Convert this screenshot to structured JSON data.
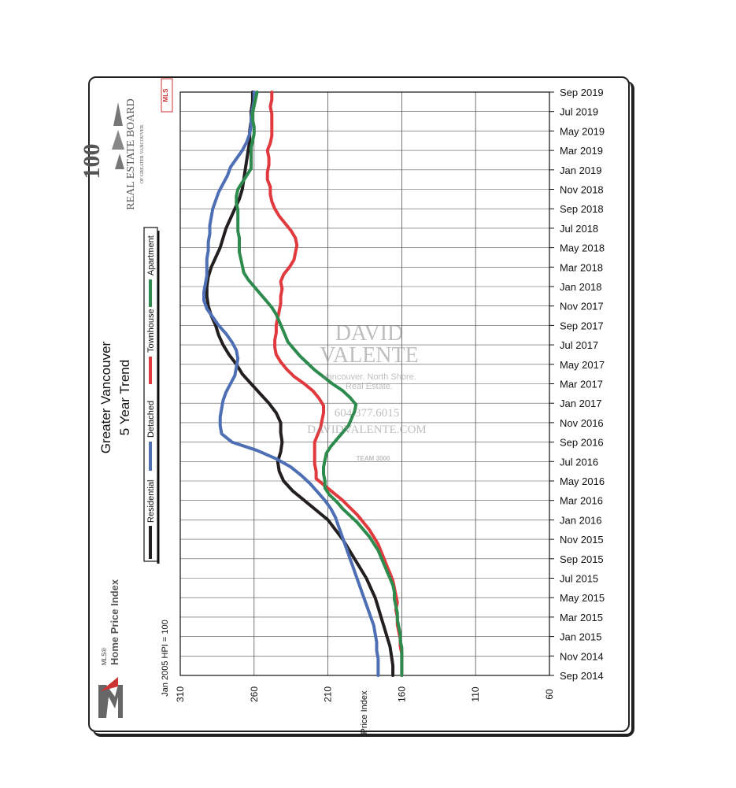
{
  "header": {
    "title": "Greater Vancouver",
    "subtitle": "5 Year Trend",
    "index_note": "Jan 2005 HPI = 100",
    "board_name": "REAL ESTATE BOARD",
    "board_sub": "OF GREATER VANCOUVER",
    "board_number": "100",
    "mls_line1": "MLS®",
    "mls_line2": "Home Price Index",
    "mls_badge": "MLS"
  },
  "watermark": {
    "name1": "DAVID",
    "name2": "VALENTE",
    "tagline1": "Vancouver. North Shore.",
    "tagline2": "Real Estate.",
    "phone": "604.377.6015",
    "website": "DAVIDVALENTE.COM",
    "team": "TEAM 3000"
  },
  "colors": {
    "Residential": "#231f20",
    "Detached": "#4f6fb5",
    "Townhouse": "#e03a3e",
    "Apartment": "#2e8b4e",
    "grid": "#555555"
  },
  "chart_data": {
    "type": "line",
    "orientation": "rotated-90",
    "xlabel": "Price Index",
    "ylim": [
      60,
      310
    ],
    "y_axis_reversed": true,
    "y_ticks": [
      310,
      260,
      210,
      160,
      110,
      60
    ],
    "x_ticks": [
      "Sep 2014",
      "Nov 2014",
      "Jan 2015",
      "Mar 2015",
      "May 2015",
      "Jul 2015",
      "Sep 2015",
      "Nov 2015",
      "Jan 2016",
      "Mar 2016",
      "May 2016",
      "Jul 2016",
      "Sep 2016",
      "Nov 2016",
      "Jan 2017",
      "Mar 2017",
      "May 2017",
      "Jul 2017",
      "Sep 2017",
      "Nov 2017",
      "Jan 2018",
      "Mar 2018",
      "May 2018",
      "Jul 2018",
      "Sep 2018",
      "Nov 2018",
      "Jan 2019",
      "Mar 2019",
      "May 2019",
      "Jul 2019",
      "Sep 2019"
    ],
    "grid": true,
    "legend_position": "left",
    "series": [
      {
        "name": "Residential",
        "values": [
          166,
          166,
          167,
          168,
          170,
          172,
          174,
          176,
          178,
          181,
          184,
          188,
          192,
          196,
          200,
          205,
          210,
          218,
          226,
          234,
          240,
          243,
          244,
          242,
          241,
          242,
          242,
          245,
          250,
          256,
          262,
          268,
          272,
          277,
          281,
          284,
          286,
          289,
          291,
          292,
          292,
          291,
          289,
          286,
          283,
          281,
          279,
          276,
          273,
          270,
          268,
          267,
          266,
          265,
          264,
          263,
          263,
          262,
          262,
          261,
          261
        ]
      },
      {
        "name": "Detached",
        "values": [
          176,
          176,
          176,
          177,
          177,
          178,
          179,
          181,
          183,
          185,
          187,
          189,
          191,
          193,
          195,
          197,
          199,
          201,
          203,
          205,
          208,
          212,
          217,
          222,
          228,
          235,
          245,
          258,
          275,
          282,
          283,
          283,
          282,
          281,
          279,
          276,
          273,
          272,
          271,
          272,
          275,
          279,
          284,
          288,
          292,
          294,
          294,
          293,
          292,
          292,
          292,
          291,
          291,
          290,
          290,
          289,
          288,
          286,
          284,
          281,
          278,
          276,
          272,
          268,
          265,
          263,
          262,
          262,
          261,
          260,
          260
        ]
      },
      {
        "name": "Townhouse",
        "values": [
          160,
          160,
          160,
          160,
          161,
          161,
          162,
          163,
          163,
          164,
          163,
          164,
          165,
          166,
          168,
          170,
          172,
          174,
          176,
          179,
          182,
          186,
          190,
          195,
          200,
          206,
          212,
          218,
          218,
          219,
          219,
          219,
          219,
          217,
          215,
          214,
          213,
          213,
          216,
          220,
          226,
          233,
          238,
          242,
          245,
          246,
          246,
          245,
          245,
          244,
          243,
          242,
          242,
          241,
          242,
          240,
          236,
          233,
          232,
          231,
          232,
          235,
          239,
          243,
          246,
          248,
          249,
          249,
          251,
          251,
          250,
          250,
          251,
          249,
          248,
          248,
          248,
          248,
          249,
          248,
          248
        ]
      },
      {
        "name": "Apartment",
        "values": [
          160,
          160,
          160,
          160,
          160,
          161,
          161,
          162,
          163,
          163,
          164,
          165,
          165,
          166,
          168,
          170,
          172,
          174,
          176,
          179,
          182,
          186,
          190,
          195,
          200,
          204,
          209,
          212,
          212,
          213,
          213,
          212,
          211,
          208,
          204,
          200,
          196,
          194,
          192,
          191,
          195,
          200,
          207,
          213,
          219,
          224,
          229,
          233,
          237,
          239,
          241,
          243,
          245,
          248,
          252,
          256,
          260,
          264,
          267,
          268,
          269,
          270,
          270,
          270,
          271,
          271,
          271,
          271,
          272,
          272,
          271,
          268,
          265,
          262,
          262,
          262,
          262,
          261,
          260,
          260,
          261,
          261,
          260,
          259,
          258
        ]
      }
    ]
  }
}
